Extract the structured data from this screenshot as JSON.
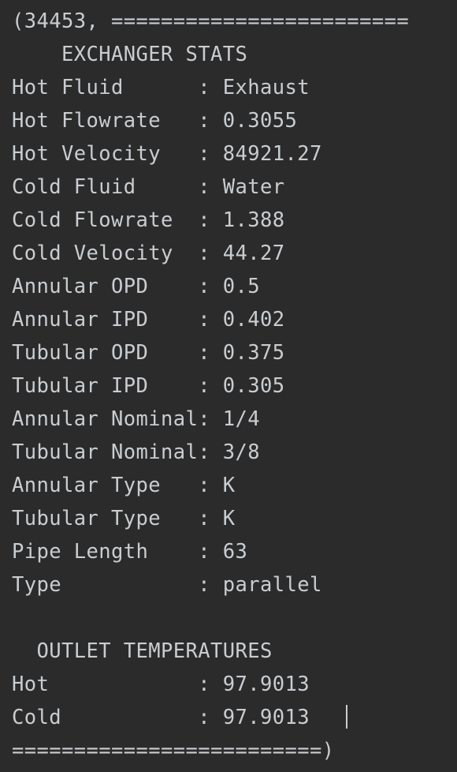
{
  "console": {
    "lines": [
      "(34453, ========================",
      "    EXCHANGER STATS",
      "Hot Fluid      : Exhaust",
      "Hot Flowrate   : 0.3055",
      "Hot Velocity   : 84921.27",
      "Cold Fluid     : Water",
      "Cold Flowrate  : 1.388",
      "Cold Velocity  : 44.27",
      "Annular OPD    : 0.5",
      "Annular IPD    : 0.402",
      "Tubular OPD    : 0.375",
      "Tubular IPD    : 0.305",
      "Annular Nominal: 1/4",
      "Tubular Nominal: 3/8",
      "Annular Type   : K",
      "Tubular Type   : K",
      "Pipe Length    : 63",
      "Type           : parallel",
      "",
      "  OUTLET TEMPERATURES",
      "Hot            : 97.9013",
      "Cold           : 97.9013",
      "=========================)"
    ]
  }
}
